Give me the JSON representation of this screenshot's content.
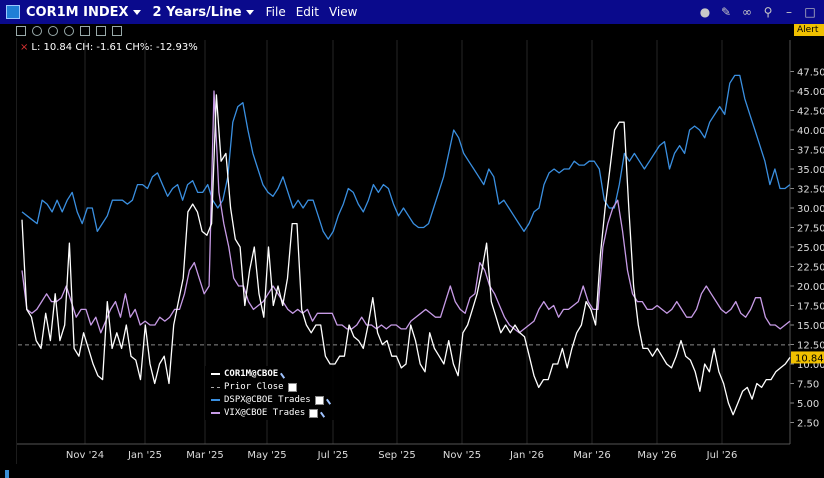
{
  "window": {
    "title": "COR1M INDEX",
    "period": "2 Years/Line",
    "menu": [
      "File",
      "Edit",
      "View"
    ],
    "alert_label": "Alert"
  },
  "info_line": "L: 10.84 CH: -1.61 CH%: -12.93%",
  "chart_data": {
    "type": "line",
    "x_labels": [
      "Nov '24",
      "Jan '25",
      "Mar '25",
      "May '25",
      "Jul '25",
      "Sep '25",
      "Nov '25",
      "Jan '26",
      "Mar '26",
      "May '26",
      "Jul '26"
    ],
    "y_ticks": [
      "47.50",
      "45.00",
      "42.50",
      "40.00",
      "37.50",
      "35.00",
      "32.50",
      "30.00",
      "27.50",
      "25.00",
      "22.50",
      "20.00",
      "17.50",
      "15.00",
      "12.50",
      "10.00",
      "7.50",
      "5.00",
      "2.50"
    ],
    "ylim": [
      0,
      50
    ],
    "prior_close": 12.45,
    "last_value_label": "10.84",
    "series": [
      {
        "name": "COR1M@CBOE",
        "color": "#ffffff",
        "values": [
          28.5,
          17,
          16,
          13,
          12,
          16.5,
          13,
          19,
          13,
          15,
          25.5,
          12,
          11,
          14,
          12,
          10,
          8.5,
          8,
          18,
          12,
          14,
          12,
          15,
          11,
          10.5,
          8,
          15,
          10,
          7.5,
          10,
          11,
          7.5,
          15,
          18,
          21,
          29.5,
          30.5,
          29.5,
          27,
          26.5,
          28,
          44.5,
          36,
          37,
          30,
          26,
          25,
          17.5,
          22,
          25,
          19,
          16,
          25,
          17.5,
          20,
          17.5,
          21,
          28,
          28,
          17,
          15,
          14,
          15,
          15,
          11,
          10,
          10,
          11,
          11,
          15,
          13.5,
          13,
          12,
          15,
          18.5,
          14,
          12.5,
          13,
          11,
          11,
          9.5,
          10,
          15,
          13,
          10,
          9,
          14,
          12,
          11,
          10,
          13,
          10,
          8.5,
          14,
          15,
          17,
          19,
          22,
          25.5,
          18,
          16,
          14,
          15,
          14,
          15,
          14,
          13.5,
          11,
          8.5,
          7,
          8,
          8,
          10,
          10,
          12,
          9.5,
          12,
          14,
          15,
          18,
          17,
          15,
          24,
          30,
          35,
          40,
          41,
          41,
          30,
          20,
          15,
          12,
          12,
          11,
          12,
          11,
          10,
          9.5,
          11,
          13,
          11,
          10.5,
          9,
          6.5,
          10,
          9,
          12,
          9,
          7.5,
          5,
          3.5,
          5,
          6.5,
          7,
          5.5,
          7.5,
          7,
          8,
          8,
          9,
          9.5,
          10,
          10.84
        ]
      },
      {
        "name": "DSPX@CBOE Trades",
        "color": "#3a8fe0",
        "values": [
          29.5,
          29,
          28.5,
          28,
          31,
          30.5,
          29.5,
          31,
          29.5,
          31,
          32,
          29.5,
          28,
          30,
          30,
          27,
          28,
          29,
          31,
          31,
          31,
          30.5,
          31,
          33,
          33,
          32.5,
          34,
          34.5,
          33,
          31.5,
          32.5,
          33,
          31,
          33,
          33.5,
          32,
          32,
          33,
          31,
          30,
          31,
          34,
          41,
          43,
          43.5,
          40,
          37,
          35,
          33,
          32,
          31.5,
          32.5,
          34,
          32,
          30,
          31,
          30,
          31,
          31,
          29,
          27,
          26,
          27,
          29,
          30.5,
          32.5,
          32,
          30.5,
          29.5,
          31,
          33,
          32,
          33,
          32.5,
          30.5,
          29,
          30,
          29,
          28,
          27.5,
          27.5,
          28,
          30,
          32,
          34,
          37,
          40,
          39,
          37,
          36,
          35,
          34,
          33,
          35,
          34,
          30.5,
          31,
          30,
          29,
          28,
          27,
          28,
          29.5,
          30,
          33,
          34.5,
          35,
          34.5,
          35,
          35,
          36,
          35.5,
          35.5,
          36,
          36,
          35,
          31,
          30,
          30,
          33,
          37,
          36,
          37,
          36,
          35,
          36,
          37,
          38,
          38.5,
          35,
          37,
          38,
          37,
          40,
          40.5,
          40,
          39,
          41,
          42,
          43,
          42,
          46,
          47,
          47,
          44,
          42,
          40,
          38,
          36,
          33,
          35,
          32.5,
          32.5,
          33
        ]
      },
      {
        "name": "VIX@CBOE Trades",
        "color": "#c79be6",
        "values": [
          22,
          17,
          16.5,
          17,
          18,
          19,
          18,
          18,
          18.5,
          20,
          18,
          16,
          17,
          17,
          15,
          16,
          14,
          15.5,
          17,
          18,
          16,
          19,
          16,
          17,
          15,
          15.5,
          15,
          15,
          16,
          15.5,
          16,
          17,
          17,
          19,
          22,
          23,
          21,
          19,
          20,
          45,
          32,
          28,
          25,
          21,
          20,
          20,
          18,
          17,
          17.5,
          18,
          19,
          20,
          19,
          18,
          17,
          16.5,
          17,
          16.5,
          17,
          15.5,
          16.5,
          16.5,
          16.5,
          16.5,
          15,
          15,
          14.5,
          14.5,
          15,
          16,
          15,
          15,
          14.5,
          15,
          14.5,
          15,
          15,
          14.5,
          14.5,
          15.5,
          16,
          16.5,
          17,
          16.5,
          16,
          16,
          18,
          20,
          18,
          17,
          16.5,
          18.5,
          19,
          23,
          22,
          20,
          19,
          17.5,
          16,
          15,
          14.5,
          14,
          14.5,
          15,
          15.5,
          17,
          18,
          17,
          17.5,
          16,
          17,
          17,
          17.5,
          18,
          20,
          18,
          17,
          17,
          25,
          28,
          30,
          31,
          27,
          22,
          19,
          18,
          18,
          17,
          17,
          17.5,
          17,
          16.5,
          17,
          18,
          17,
          16,
          16,
          17,
          19,
          20,
          19,
          18,
          17,
          16.5,
          17,
          18,
          16.5,
          16,
          17,
          18.5,
          18.5,
          16,
          15,
          15,
          14.5,
          15,
          15.5
        ]
      }
    ]
  },
  "legend": {
    "cor1m": "COR1M@CBOE",
    "prior": "Prior Close",
    "dspx": "DSPX@CBOE Trades",
    "vix": "VIX@CBOE Trades"
  }
}
